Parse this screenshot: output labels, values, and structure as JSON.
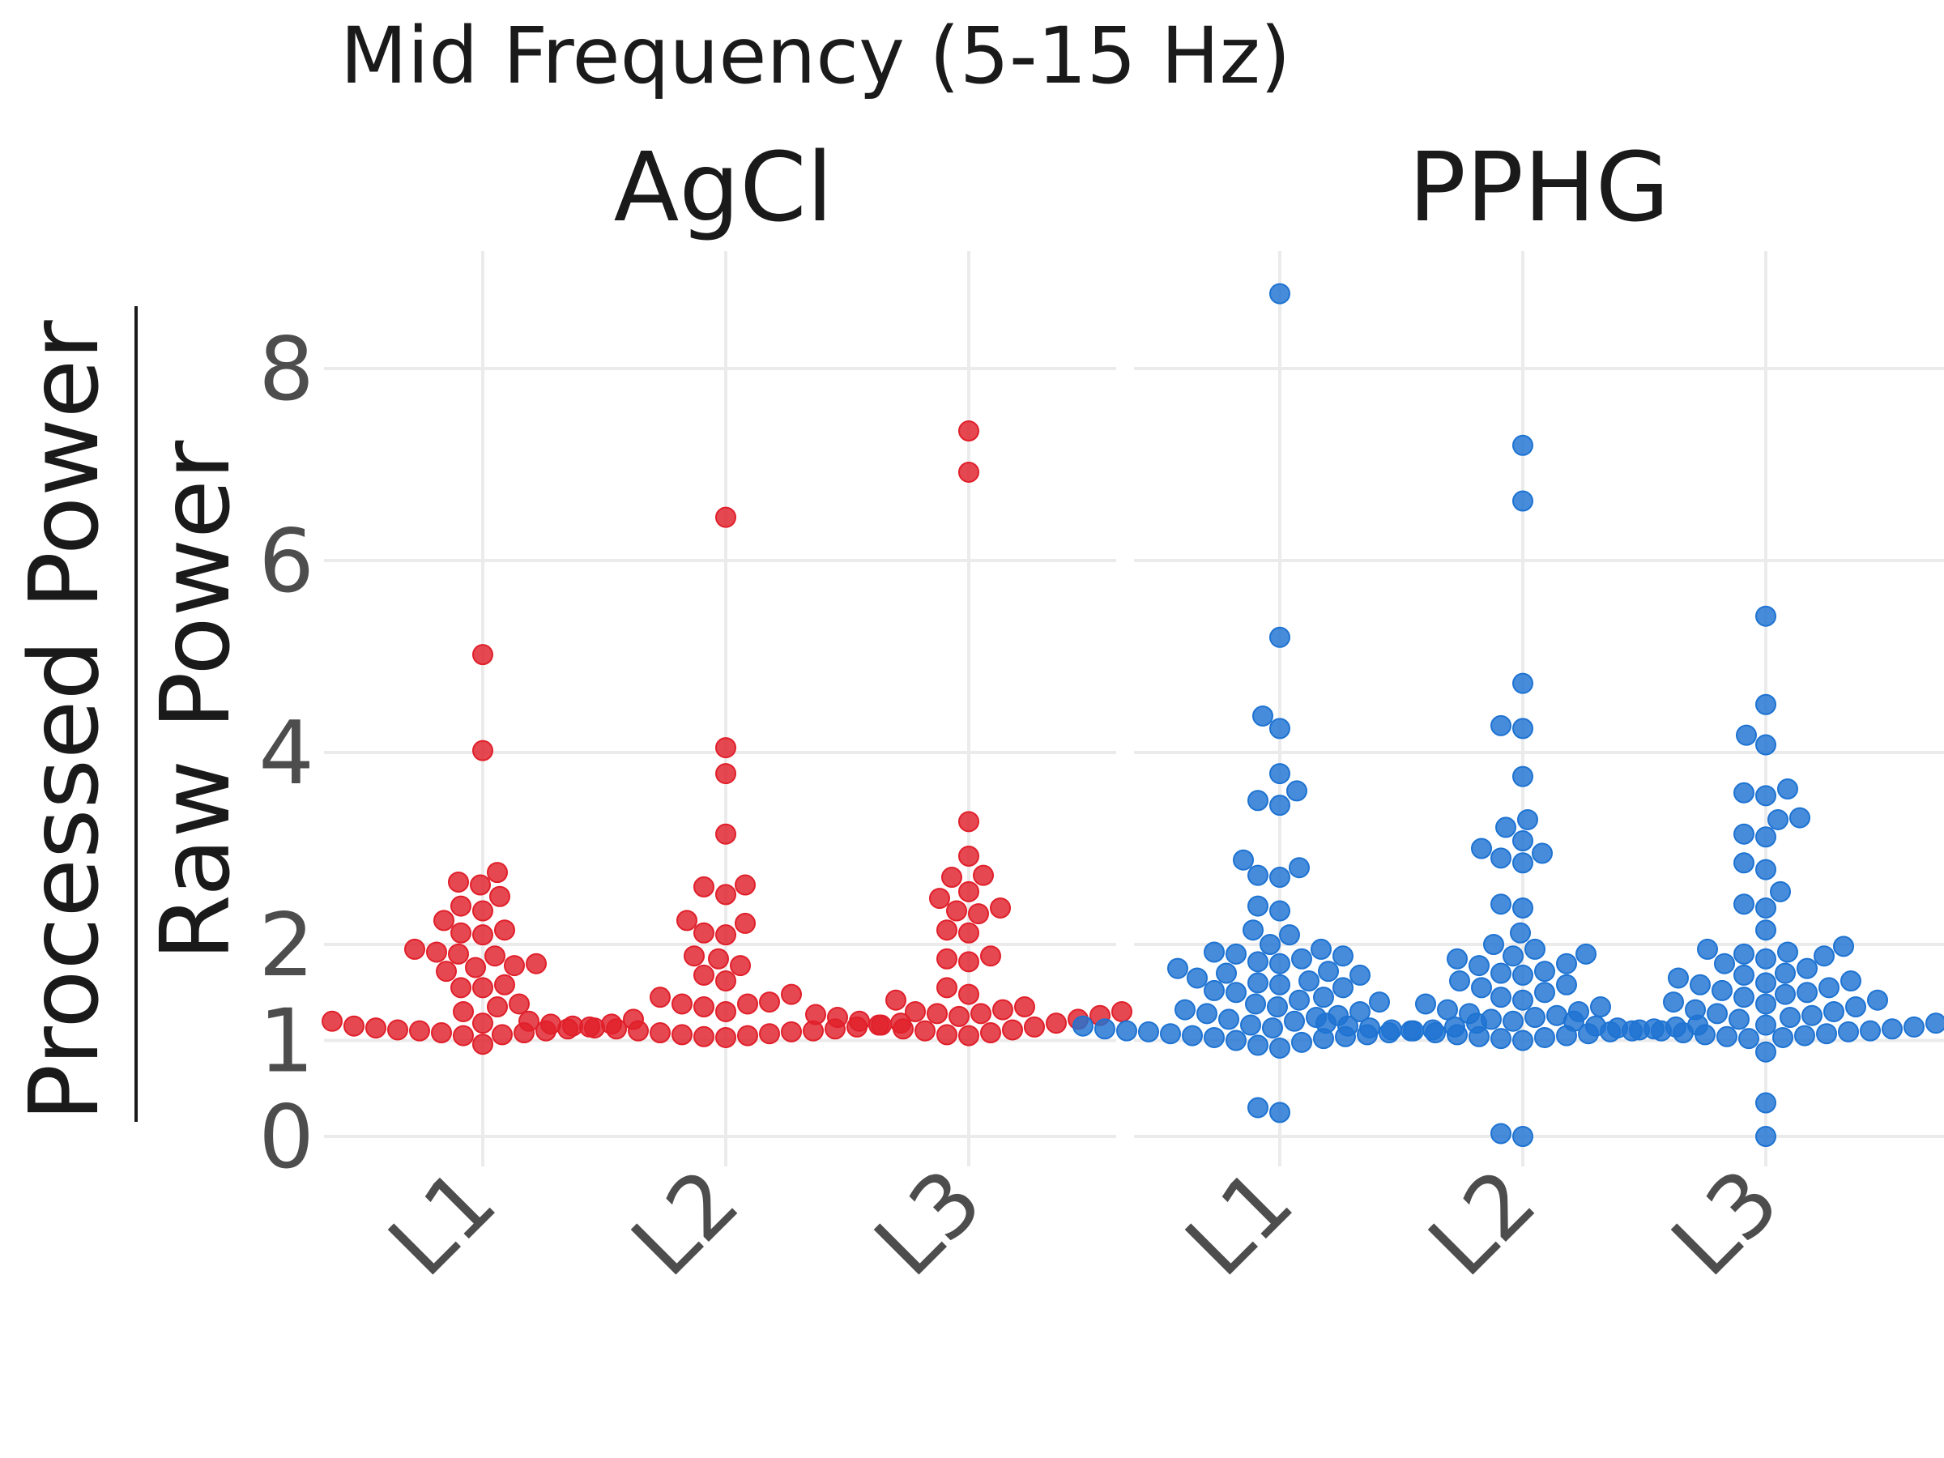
{
  "chart_data": {
    "type": "scatter",
    "title": "Mid Frequency (5-15 Hz)",
    "ylabel_numerator": "Processed Power",
    "ylabel_denominator": "Raw Power",
    "y_ticks": [
      0,
      1,
      2,
      4,
      6,
      8
    ],
    "y_tick_labels": [
      "0",
      "1",
      "2",
      "4",
      "6",
      "8"
    ],
    "ylim": [
      -0.3,
      9.0
    ],
    "grid": true,
    "legend": "none",
    "categories": [
      "L1",
      "L2",
      "L3"
    ],
    "panels": [
      {
        "name": "AgCl",
        "color": "#e0202b",
        "groups": [
          {
            "category": "L1",
            "values": [
              5.02,
              4.02,
              2.75,
              2.65,
              2.62,
              2.5,
              2.4,
              2.35,
              2.25,
              2.15,
              2.1,
              2.12,
              1.95,
              1.9,
              1.92,
              1.88,
              1.8,
              1.78,
              1.76,
              1.72,
              1.58,
              1.55,
              1.55,
              1.38,
              1.35,
              1.3,
              1.22,
              1.2,
              1.18,
              1.17,
              1.15,
              1.14,
              1.13,
              1.12,
              1.11,
              1.1,
              1.1,
              1.08,
              1.08,
              1.06,
              1.05,
              0.96
            ]
          },
          {
            "category": "L2",
            "values": [
              6.45,
              4.05,
              3.78,
              3.15,
              2.62,
              2.6,
              2.52,
              2.25,
              2.22,
              2.12,
              2.1,
              1.88,
              1.85,
              1.78,
              1.68,
              1.62,
              1.48,
              1.45,
              1.4,
              1.38,
              1.38,
              1.35,
              1.3,
              1.2,
              1.18,
              1.17,
              1.16,
              1.15,
              1.14,
              1.13,
              1.12,
              1.12,
              1.1,
              1.1,
              1.09,
              1.08,
              1.07,
              1.06,
              1.05,
              1.04,
              1.03
            ]
          },
          {
            "category": "L3",
            "values": [
              7.35,
              6.92,
              3.28,
              2.92,
              2.72,
              2.7,
              2.55,
              2.48,
              2.38,
              2.35,
              2.32,
              2.15,
              2.12,
              1.88,
              1.85,
              1.82,
              1.55,
              1.48,
              1.42,
              1.35,
              1.32,
              1.3,
              1.3,
              1.28,
              1.28,
              1.27,
              1.26,
              1.25,
              1.24,
              1.22,
              1.2,
              1.18,
              1.16,
              1.14,
              1.12,
              1.11,
              1.1,
              1.08,
              1.06,
              1.05
            ]
          }
        ]
      },
      {
        "name": "PPHG",
        "color": "#1e73d2",
        "groups": [
          {
            "category": "L1",
            "values": [
              8.78,
              5.2,
              4.38,
              4.25,
              3.78,
              3.6,
              3.5,
              3.45,
              2.88,
              2.8,
              2.72,
              2.7,
              2.4,
              2.35,
              2.15,
              2.1,
              2.0,
              1.95,
              1.92,
              1.9,
              1.88,
              1.85,
              1.82,
              1.8,
              1.75,
              1.72,
              1.7,
              1.68,
              1.65,
              1.62,
              1.6,
              1.58,
              1.55,
              1.52,
              1.5,
              1.45,
              1.42,
              1.4,
              1.38,
              1.35,
              1.32,
              1.3,
              1.28,
              1.26,
              1.24,
              1.22,
              1.2,
              1.18,
              1.16,
              1.15,
              1.14,
              1.13,
              1.12,
              1.11,
              1.1,
              1.1,
              1.09,
              1.08,
              1.07,
              1.06,
              1.05,
              1.04,
              1.03,
              1.02,
              1.0,
              0.98,
              0.95,
              0.92,
              0.3,
              0.25
            ]
          },
          {
            "category": "L2",
            "values": [
              7.2,
              6.62,
              4.72,
              4.28,
              4.25,
              3.75,
              3.3,
              3.22,
              3.08,
              3.0,
              2.95,
              2.9,
              2.85,
              2.42,
              2.38,
              2.12,
              2.0,
              1.95,
              1.9,
              1.88,
              1.85,
              1.8,
              1.78,
              1.72,
              1.7,
              1.68,
              1.62,
              1.58,
              1.55,
              1.5,
              1.45,
              1.42,
              1.38,
              1.35,
              1.32,
              1.3,
              1.28,
              1.26,
              1.24,
              1.22,
              1.2,
              1.18,
              1.16,
              1.15,
              1.14,
              1.13,
              1.12,
              1.11,
              1.1,
              1.1,
              1.09,
              1.08,
              1.07,
              1.06,
              1.05,
              1.04,
              1.03,
              1.02,
              1.0,
              0.03,
              0.0
            ]
          },
          {
            "category": "L3",
            "values": [
              5.42,
              4.5,
              4.18,
              4.08,
              3.62,
              3.58,
              3.55,
              3.32,
              3.3,
              3.15,
              3.12,
              2.85,
              2.78,
              2.55,
              2.42,
              2.38,
              2.15,
              1.98,
              1.95,
              1.92,
              1.9,
              1.88,
              1.85,
              1.8,
              1.75,
              1.7,
              1.68,
              1.65,
              1.62,
              1.6,
              1.58,
              1.55,
              1.52,
              1.5,
              1.48,
              1.45,
              1.42,
              1.4,
              1.38,
              1.35,
              1.32,
              1.3,
              1.28,
              1.26,
              1.24,
              1.22,
              1.2,
              1.18,
              1.16,
              1.15,
              1.14,
              1.13,
              1.12,
              1.11,
              1.1,
              1.1,
              1.09,
              1.08,
              1.07,
              1.06,
              1.05,
              1.04,
              1.03,
              1.02,
              0.88,
              0.35,
              0.0
            ]
          }
        ]
      }
    ]
  }
}
